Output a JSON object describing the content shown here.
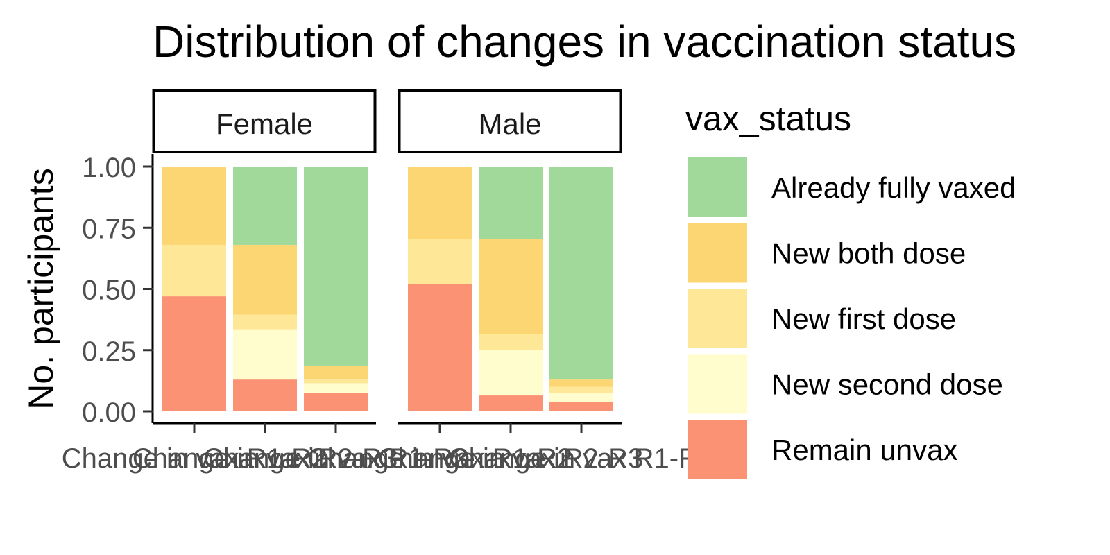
{
  "chart_data": {
    "type": "bar",
    "stacked": true,
    "normalized": true,
    "title": "Distribution of changes in vaccination status",
    "xlabel": "",
    "ylabel": "No. participants",
    "ylim": [
      0,
      1
    ],
    "y_ticks": [
      "0.00",
      "0.25",
      "0.50",
      "0.75",
      "1.00"
    ],
    "y_tick_values": [
      0,
      0.25,
      0.5,
      0.75,
      1
    ],
    "grid": false,
    "categories": [
      "Change in vax R1-R2",
      "Change in vax R2-R3",
      "Change in vax R1-R3"
    ],
    "legend": {
      "title": "vax_status",
      "position": "right",
      "entries": [
        "Already fully vaxed",
        "New both dose",
        "New first dose",
        "New second dose",
        "Remain unvax"
      ]
    },
    "colors": {
      "Already fully vaxed": "#a1d99b",
      "New both dose": "#fdd674",
      "New first dose": "#fee898",
      "New second dose": "#fffccd",
      "Remain unvax": "#fb9273"
    },
    "stack_order_bottom_to_top": [
      "Remain unvax",
      "New second dose",
      "New first dose",
      "New both dose",
      "Already fully vaxed"
    ],
    "facets": [
      {
        "label": "Female",
        "series": [
          {
            "name": "Remain unvax",
            "values": [
              0.47,
              0.13,
              0.075
            ]
          },
          {
            "name": "New second dose",
            "values": [
              0.0,
              0.205,
              0.04
            ]
          },
          {
            "name": "New first dose",
            "values": [
              0.21,
              0.06,
              0.015
            ]
          },
          {
            "name": "New both dose",
            "values": [
              0.32,
              0.285,
              0.055
            ]
          },
          {
            "name": "Already fully vaxed",
            "values": [
              0.0,
              0.32,
              0.815
            ]
          }
        ]
      },
      {
        "label": "Male",
        "series": [
          {
            "name": "Remain unvax",
            "values": [
              0.52,
              0.065,
              0.04
            ]
          },
          {
            "name": "New second dose",
            "values": [
              0.0,
              0.185,
              0.035
            ]
          },
          {
            "name": "New first dose",
            "values": [
              0.185,
              0.065,
              0.025
            ]
          },
          {
            "name": "New both dose",
            "values": [
              0.295,
              0.39,
              0.03
            ]
          },
          {
            "name": "Already fully vaxed",
            "values": [
              0.0,
              0.295,
              0.87
            ]
          }
        ]
      }
    ]
  }
}
